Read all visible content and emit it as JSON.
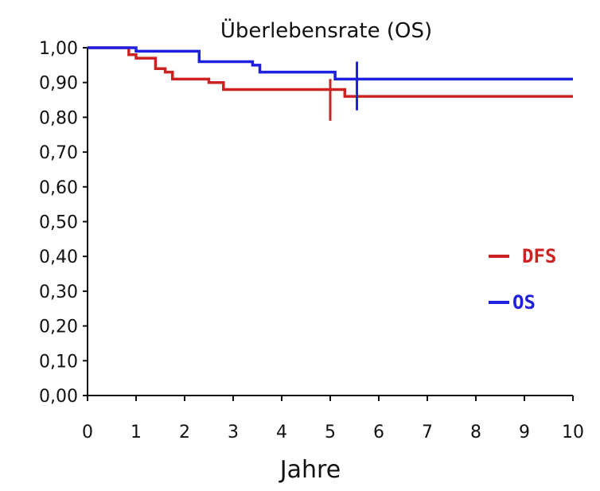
{
  "chart_data": {
    "type": "line",
    "title": "Überlebensrate (OS)",
    "xlabel": "Jahre",
    "ylabel": "",
    "xlim": [
      0,
      10
    ],
    "ylim": [
      0,
      1
    ],
    "x_ticks": [
      "0",
      "1",
      "2",
      "3",
      "4",
      "5",
      "6",
      "7",
      "8",
      "9",
      "10"
    ],
    "y_ticks": [
      "0,00",
      "0,10",
      "0,20",
      "0,30",
      "0,40",
      "0,50",
      "0,60",
      "0,70",
      "0,80",
      "0,90",
      "1,00"
    ],
    "grid": false,
    "legend_position": "right",
    "series": [
      {
        "name": "DFS",
        "color": "#cc2222",
        "step": true,
        "points": [
          [
            0,
            1.0
          ],
          [
            0.8,
            1.0
          ],
          [
            0.85,
            0.98
          ],
          [
            1.0,
            0.97
          ],
          [
            1.4,
            0.94
          ],
          [
            1.6,
            0.93
          ],
          [
            1.75,
            0.91
          ],
          [
            2.5,
            0.9
          ],
          [
            2.8,
            0.88
          ],
          [
            5.3,
            0.86
          ],
          [
            10,
            0.86
          ]
        ],
        "marker_x": 5.0,
        "marker_range": [
          0.79,
          0.91
        ]
      },
      {
        "name": "OS",
        "color": "#1f1fe0",
        "step": true,
        "points": [
          [
            0,
            1.0
          ],
          [
            1.0,
            0.99
          ],
          [
            2.3,
            0.96
          ],
          [
            3.4,
            0.95
          ],
          [
            3.55,
            0.93
          ],
          [
            5.1,
            0.91
          ],
          [
            10,
            0.91
          ]
        ],
        "marker_x": 5.55,
        "marker_range": [
          0.82,
          0.96
        ]
      }
    ]
  }
}
